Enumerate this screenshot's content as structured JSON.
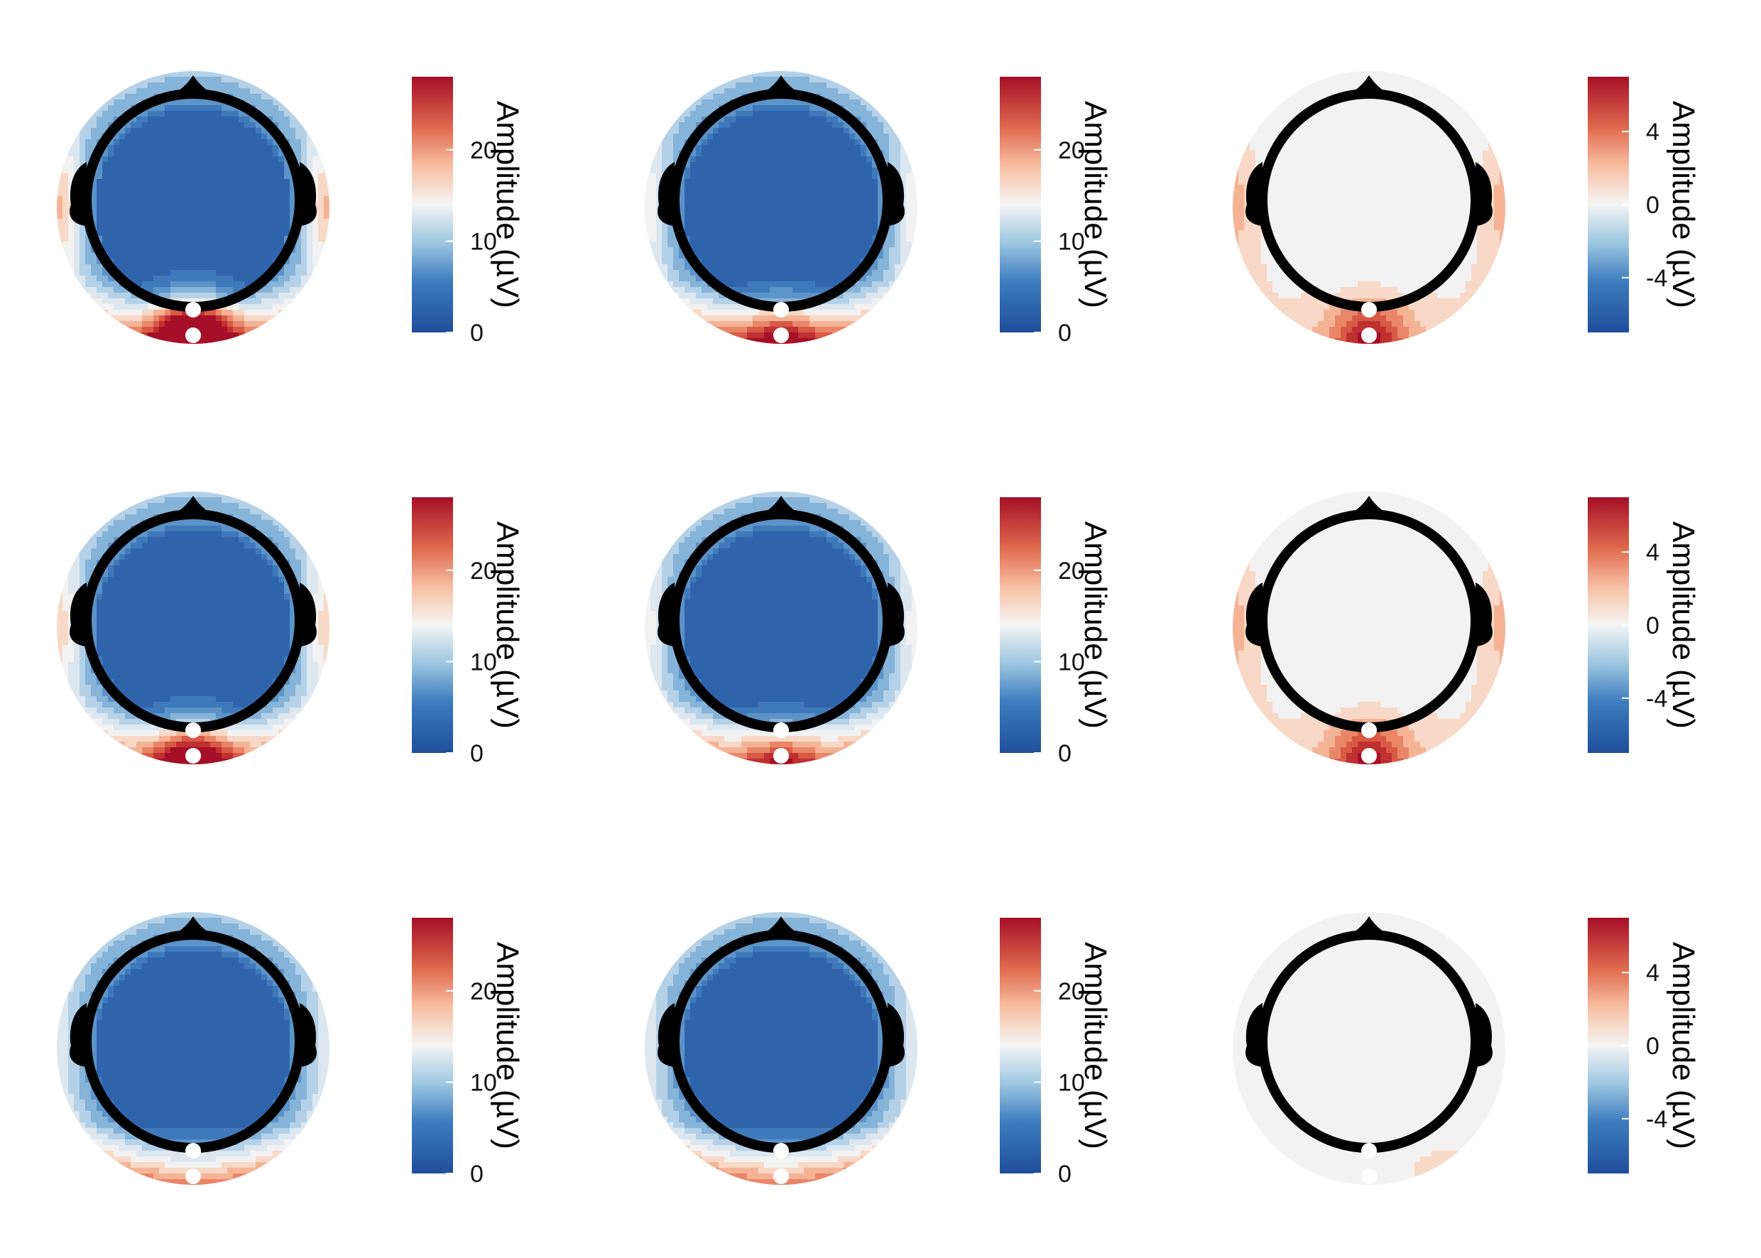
{
  "chart_data": [
    {
      "type": "heatmap",
      "subtype": "scalp-topomap",
      "row": 1,
      "col": 1,
      "colorbar": {
        "label": "Amplitude (µV)",
        "ticks": [
          "0",
          "10",
          "20"
        ],
        "range": [
          0,
          28
        ],
        "colormap": "RdBu_r"
      }
    },
    {
      "type": "heatmap",
      "subtype": "scalp-topomap",
      "row": 1,
      "col": 2,
      "colorbar": {
        "label": "Amplitude (µV)",
        "ticks": [
          "0",
          "10",
          "20"
        ],
        "range": [
          0,
          28
        ],
        "colormap": "RdBu_r"
      }
    },
    {
      "type": "heatmap",
      "subtype": "scalp-topomap",
      "row": 1,
      "col": 3,
      "colorbar": {
        "label": "Amplitude (µV)",
        "ticks": [
          "-4",
          "0",
          "4"
        ],
        "range": [
          -7,
          7
        ],
        "colormap": "RdBu_r"
      }
    },
    {
      "type": "heatmap",
      "subtype": "scalp-topomap",
      "row": 2,
      "col": 1,
      "colorbar": {
        "label": "Amplitude (µV)",
        "ticks": [
          "0",
          "10",
          "20"
        ],
        "range": [
          0,
          28
        ],
        "colormap": "RdBu_r"
      }
    },
    {
      "type": "heatmap",
      "subtype": "scalp-topomap",
      "row": 2,
      "col": 2,
      "colorbar": {
        "label": "Amplitude (µV)",
        "ticks": [
          "0",
          "10",
          "20"
        ],
        "range": [
          0,
          28
        ],
        "colormap": "RdBu_r"
      }
    },
    {
      "type": "heatmap",
      "subtype": "scalp-topomap",
      "row": 2,
      "col": 3,
      "colorbar": {
        "label": "Amplitude (µV)",
        "ticks": [
          "-4",
          "0",
          "4"
        ],
        "range": [
          -7,
          7
        ],
        "colormap": "RdBu_r"
      }
    },
    {
      "type": "heatmap",
      "subtype": "scalp-topomap",
      "row": 3,
      "col": 1,
      "colorbar": {
        "label": "Amplitude (µV)",
        "ticks": [
          "0",
          "10",
          "20"
        ],
        "range": [
          0,
          28
        ],
        "colormap": "RdBu_r"
      }
    },
    {
      "type": "heatmap",
      "subtype": "scalp-topomap",
      "row": 3,
      "col": 2,
      "colorbar": {
        "label": "Amplitude (µV)",
        "ticks": [
          "0",
          "10",
          "20"
        ],
        "range": [
          0,
          28
        ],
        "colormap": "RdBu_r"
      }
    },
    {
      "type": "heatmap",
      "subtype": "scalp-topomap",
      "row": 3,
      "col": 3,
      "colorbar": {
        "label": "Amplitude (µV)",
        "ticks": [
          "-4",
          "0",
          "4"
        ],
        "range": [
          -7,
          7
        ],
        "colormap": "RdBu_r"
      }
    }
  ]
}
